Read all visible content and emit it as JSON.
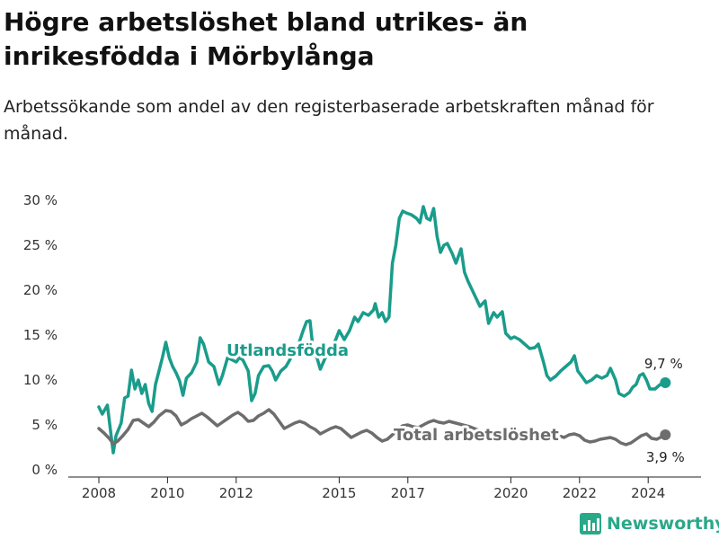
{
  "header": {
    "title": "Högre arbetslöshet bland utrikes- än inrikesfödda i Mörbylånga",
    "subtitle": "Arbetssökande som andel av den registerbaserade arbetskraften månad för månad."
  },
  "brand": {
    "name": "Newsworthy",
    "color": "#2aa88a",
    "icon": "bar-chart-logo-icon"
  },
  "chart_data": {
    "type": "line",
    "y_ticks": [
      0,
      5,
      10,
      15,
      20,
      25,
      30
    ],
    "y_tick_labels": [
      "0 %",
      "5 %",
      "10 %",
      "15 %",
      "20 %",
      "25 %",
      "30 %"
    ],
    "x_ticks": [
      2008,
      2010,
      2012,
      2015,
      2017,
      2020,
      2022,
      2024
    ],
    "ylim": [
      0,
      30
    ],
    "xlim": [
      2008,
      2025
    ],
    "grid": false,
    "series": [
      {
        "name": "Utlandsfödda",
        "color": "#1a9c8b",
        "end_label": "9,7 %",
        "points": [
          [
            2008.0,
            7.0
          ],
          [
            2008.1,
            6.2
          ],
          [
            2008.25,
            7.2
          ],
          [
            2008.35,
            4.0
          ],
          [
            2008.42,
            1.9
          ],
          [
            2008.5,
            3.8
          ],
          [
            2008.65,
            5.2
          ],
          [
            2008.75,
            8.0
          ],
          [
            2008.85,
            8.2
          ],
          [
            2008.95,
            11.1
          ],
          [
            2009.05,
            9.0
          ],
          [
            2009.15,
            10.0
          ],
          [
            2009.25,
            8.5
          ],
          [
            2009.35,
            9.5
          ],
          [
            2009.45,
            7.4
          ],
          [
            2009.55,
            6.5
          ],
          [
            2009.65,
            9.5
          ],
          [
            2009.75,
            11.0
          ],
          [
            2009.85,
            12.5
          ],
          [
            2009.95,
            14.2
          ],
          [
            2010.05,
            12.5
          ],
          [
            2010.15,
            11.5
          ],
          [
            2010.25,
            10.8
          ],
          [
            2010.35,
            9.9
          ],
          [
            2010.45,
            8.3
          ],
          [
            2010.55,
            10.2
          ],
          [
            2010.7,
            10.8
          ],
          [
            2010.85,
            12.0
          ],
          [
            2010.95,
            14.7
          ],
          [
            2011.05,
            14.0
          ],
          [
            2011.2,
            12.0
          ],
          [
            2011.35,
            11.5
          ],
          [
            2011.5,
            9.5
          ],
          [
            2011.6,
            10.5
          ],
          [
            2011.75,
            12.5
          ],
          [
            2011.9,
            12.2
          ],
          [
            2012.0,
            12.0
          ],
          [
            2012.1,
            12.5
          ],
          [
            2012.2,
            12.2
          ],
          [
            2012.35,
            11.0
          ],
          [
            2012.45,
            7.7
          ],
          [
            2012.55,
            8.5
          ],
          [
            2012.65,
            10.5
          ],
          [
            2012.8,
            11.5
          ],
          [
            2012.95,
            11.6
          ],
          [
            2013.05,
            11.0
          ],
          [
            2013.15,
            10.0
          ],
          [
            2013.3,
            11.0
          ],
          [
            2013.45,
            11.5
          ],
          [
            2013.6,
            12.5
          ],
          [
            2013.8,
            13.8
          ],
          [
            2013.95,
            15.5
          ],
          [
            2014.05,
            16.5
          ],
          [
            2014.15,
            16.6
          ],
          [
            2014.25,
            13.0
          ],
          [
            2014.35,
            12.5
          ],
          [
            2014.45,
            11.2
          ],
          [
            2014.6,
            12.5
          ],
          [
            2014.75,
            13.5
          ],
          [
            2014.9,
            14.5
          ],
          [
            2015.0,
            15.5
          ],
          [
            2015.15,
            14.5
          ],
          [
            2015.3,
            15.5
          ],
          [
            2015.45,
            17.0
          ],
          [
            2015.55,
            16.5
          ],
          [
            2015.7,
            17.5
          ],
          [
            2015.85,
            17.2
          ],
          [
            2016.0,
            17.8
          ],
          [
            2016.05,
            18.5
          ],
          [
            2016.15,
            17.0
          ],
          [
            2016.25,
            17.5
          ],
          [
            2016.35,
            16.5
          ],
          [
            2016.45,
            17.0
          ],
          [
            2016.55,
            23.0
          ],
          [
            2016.65,
            25.0
          ],
          [
            2016.75,
            28.0
          ],
          [
            2016.85,
            28.8
          ],
          [
            2016.95,
            28.6
          ],
          [
            2017.1,
            28.4
          ],
          [
            2017.25,
            28.0
          ],
          [
            2017.35,
            27.5
          ],
          [
            2017.45,
            29.3
          ],
          [
            2017.55,
            28.0
          ],
          [
            2017.65,
            27.8
          ],
          [
            2017.75,
            29.1
          ],
          [
            2017.85,
            26.0
          ],
          [
            2017.95,
            24.2
          ],
          [
            2018.05,
            25.0
          ],
          [
            2018.15,
            25.2
          ],
          [
            2018.3,
            24.0
          ],
          [
            2018.4,
            23.0
          ],
          [
            2018.55,
            24.6
          ],
          [
            2018.65,
            22.0
          ],
          [
            2018.75,
            21.0
          ],
          [
            2018.85,
            20.2
          ],
          [
            2019.0,
            19.0
          ],
          [
            2019.1,
            18.2
          ],
          [
            2019.25,
            18.8
          ],
          [
            2019.35,
            16.3
          ],
          [
            2019.5,
            17.5
          ],
          [
            2019.6,
            17.0
          ],
          [
            2019.75,
            17.6
          ],
          [
            2019.85,
            15.2
          ],
          [
            2020.0,
            14.6
          ],
          [
            2020.1,
            14.8
          ],
          [
            2020.25,
            14.5
          ],
          [
            2020.4,
            14.0
          ],
          [
            2020.55,
            13.5
          ],
          [
            2020.7,
            13.6
          ],
          [
            2020.8,
            14.0
          ],
          [
            2020.95,
            12.0
          ],
          [
            2021.05,
            10.5
          ],
          [
            2021.15,
            10.0
          ],
          [
            2021.3,
            10.4
          ],
          [
            2021.45,
            11.0
          ],
          [
            2021.6,
            11.5
          ],
          [
            2021.75,
            12.0
          ],
          [
            2021.85,
            12.7
          ],
          [
            2021.95,
            11.0
          ],
          [
            2022.05,
            10.5
          ],
          [
            2022.2,
            9.7
          ],
          [
            2022.35,
            10.0
          ],
          [
            2022.5,
            10.5
          ],
          [
            2022.65,
            10.2
          ],
          [
            2022.8,
            10.5
          ],
          [
            2022.9,
            11.3
          ],
          [
            2023.05,
            10.0
          ],
          [
            2023.15,
            8.5
          ],
          [
            2023.3,
            8.2
          ],
          [
            2023.45,
            8.6
          ],
          [
            2023.55,
            9.2
          ],
          [
            2023.65,
            9.5
          ],
          [
            2023.75,
            10.5
          ],
          [
            2023.85,
            10.7
          ],
          [
            2023.95,
            10.0
          ],
          [
            2024.05,
            9.0
          ],
          [
            2024.2,
            9.0
          ],
          [
            2024.35,
            9.5
          ],
          [
            2024.45,
            9.5
          ],
          [
            2024.5,
            9.7
          ]
        ]
      },
      {
        "name": "Total arbetslöshet",
        "color": "#6d6d6d",
        "end_label": "3,9 %",
        "points": [
          [
            2008.0,
            4.6
          ],
          [
            2008.15,
            4.1
          ],
          [
            2008.3,
            3.5
          ],
          [
            2008.42,
            2.9
          ],
          [
            2008.55,
            3.2
          ],
          [
            2008.7,
            3.8
          ],
          [
            2008.85,
            4.5
          ],
          [
            2009.0,
            5.5
          ],
          [
            2009.15,
            5.6
          ],
          [
            2009.3,
            5.2
          ],
          [
            2009.45,
            4.8
          ],
          [
            2009.6,
            5.3
          ],
          [
            2009.75,
            6.0
          ],
          [
            2009.95,
            6.6
          ],
          [
            2010.1,
            6.5
          ],
          [
            2010.25,
            6.0
          ],
          [
            2010.4,
            5.0
          ],
          [
            2010.55,
            5.3
          ],
          [
            2010.7,
            5.7
          ],
          [
            2010.85,
            6.0
          ],
          [
            2011.0,
            6.3
          ],
          [
            2011.15,
            5.9
          ],
          [
            2011.3,
            5.4
          ],
          [
            2011.45,
            4.9
          ],
          [
            2011.6,
            5.3
          ],
          [
            2011.75,
            5.7
          ],
          [
            2011.9,
            6.1
          ],
          [
            2012.05,
            6.4
          ],
          [
            2012.2,
            6.0
          ],
          [
            2012.35,
            5.4
          ],
          [
            2012.5,
            5.5
          ],
          [
            2012.65,
            6.0
          ],
          [
            2012.8,
            6.3
          ],
          [
            2012.95,
            6.7
          ],
          [
            2013.1,
            6.2
          ],
          [
            2013.25,
            5.4
          ],
          [
            2013.4,
            4.6
          ],
          [
            2013.55,
            4.9
          ],
          [
            2013.7,
            5.2
          ],
          [
            2013.85,
            5.4
          ],
          [
            2014.0,
            5.2
          ],
          [
            2014.15,
            4.8
          ],
          [
            2014.3,
            4.5
          ],
          [
            2014.45,
            4.0
          ],
          [
            2014.6,
            4.3
          ],
          [
            2014.75,
            4.6
          ],
          [
            2014.9,
            4.8
          ],
          [
            2015.05,
            4.6
          ],
          [
            2015.2,
            4.1
          ],
          [
            2015.35,
            3.6
          ],
          [
            2015.5,
            3.9
          ],
          [
            2015.65,
            4.2
          ],
          [
            2015.8,
            4.4
          ],
          [
            2015.95,
            4.1
          ],
          [
            2016.1,
            3.6
          ],
          [
            2016.25,
            3.2
          ],
          [
            2016.4,
            3.4
          ],
          [
            2016.55,
            3.9
          ],
          [
            2016.7,
            4.5
          ],
          [
            2016.85,
            4.9
          ],
          [
            2017.0,
            5.0
          ],
          [
            2017.15,
            4.8
          ],
          [
            2017.3,
            4.7
          ],
          [
            2017.45,
            5.0
          ],
          [
            2017.6,
            5.3
          ],
          [
            2017.75,
            5.5
          ],
          [
            2017.9,
            5.3
          ],
          [
            2018.05,
            5.2
          ],
          [
            2018.2,
            5.4
          ],
          [
            2018.4,
            5.2
          ],
          [
            2018.6,
            5.0
          ],
          [
            2018.8,
            4.8
          ],
          [
            2019.0,
            4.5
          ],
          [
            2019.2,
            4.2
          ],
          [
            2019.4,
            4.1
          ],
          [
            2019.6,
            4.1
          ],
          [
            2019.8,
            4.0
          ],
          [
            2020.0,
            4.2
          ],
          [
            2020.2,
            4.3
          ],
          [
            2020.4,
            4.2
          ],
          [
            2020.6,
            4.1
          ],
          [
            2020.8,
            4.1
          ],
          [
            2021.0,
            3.9
          ],
          [
            2021.2,
            3.7
          ],
          [
            2021.4,
            3.8
          ],
          [
            2021.55,
            3.6
          ],
          [
            2021.7,
            3.9
          ],
          [
            2021.85,
            4.0
          ],
          [
            2022.0,
            3.8
          ],
          [
            2022.15,
            3.3
          ],
          [
            2022.3,
            3.1
          ],
          [
            2022.45,
            3.2
          ],
          [
            2022.6,
            3.4
          ],
          [
            2022.75,
            3.5
          ],
          [
            2022.9,
            3.6
          ],
          [
            2023.05,
            3.4
          ],
          [
            2023.2,
            3.0
          ],
          [
            2023.35,
            2.8
          ],
          [
            2023.5,
            3.0
          ],
          [
            2023.65,
            3.4
          ],
          [
            2023.8,
            3.8
          ],
          [
            2023.95,
            4.0
          ],
          [
            2024.1,
            3.5
          ],
          [
            2024.25,
            3.4
          ],
          [
            2024.4,
            3.7
          ],
          [
            2024.5,
            3.9
          ]
        ]
      }
    ]
  }
}
